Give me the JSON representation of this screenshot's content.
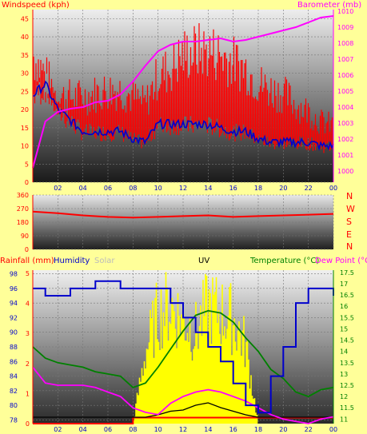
{
  "panel1": {
    "left_label": "Windspeed (kph)",
    "right_label": "Barometer (mb)",
    "center_label": "",
    "y_left_ticks": [
      "45",
      "40",
      "35",
      "30",
      "25",
      "20",
      "15",
      "10",
      "5",
      "0"
    ],
    "y_right_ticks": [
      "1010",
      "1009",
      "1008",
      "1007",
      "1006",
      "1005",
      "1004",
      "1003",
      "1002",
      "1001",
      "1000"
    ],
    "x_ticks": [
      "02",
      "04",
      "06",
      "08",
      "10",
      "12",
      "14",
      "16",
      "18",
      "20",
      "22",
      "00"
    ]
  },
  "panel2": {
    "y_ticks": [
      "360",
      "270",
      "180",
      "90",
      "0"
    ],
    "x_ticks": [
      "02",
      "04",
      "06",
      "08",
      "10",
      "12",
      "14",
      "16",
      "18",
      "20",
      "22",
      "00"
    ],
    "compass": [
      "N",
      "W",
      "S",
      "E",
      "N"
    ]
  },
  "panel3": {
    "labels": {
      "rainfall": "Rainfall (mm)",
      "humidity": "Humidity",
      "solar": "Solar",
      "uv": "UV",
      "temperature": "Temperature (°C)",
      "dewpoint": "Dew Point (°C)"
    },
    "y_rain_ticks": [
      "5",
      "4",
      "3",
      "2",
      "1",
      "0"
    ],
    "y_hum_ticks": [
      "98",
      "96",
      "94",
      "92",
      "90",
      "88",
      "86",
      "84",
      "82",
      "80",
      "78"
    ],
    "y_temp_ticks": [
      "17.5",
      "17",
      "16.5",
      "16",
      "15.5",
      "15",
      "14.5",
      "14",
      "13.5",
      "13",
      "12.5",
      "12",
      "11.5",
      "11"
    ],
    "x_ticks": [
      "02",
      "04",
      "06",
      "08",
      "10",
      "12",
      "14",
      "16",
      "18",
      "20",
      "22",
      "00"
    ]
  },
  "colors": {
    "background": "#ffff99",
    "wind": "#ff0000",
    "gust": "#ff0000",
    "avg_wind": "#0000cc",
    "barometer": "#ff00ff",
    "humidity": "#0000cc",
    "solar": "#ffff00",
    "temperature": "#008000",
    "dewpoint": "#ff00ff"
  },
  "chart_data": [
    {
      "type": "line",
      "x_hours": [
        0,
        1,
        2,
        3,
        4,
        5,
        6,
        7,
        8,
        9,
        10,
        11,
        12,
        13,
        14,
        15,
        16,
        17,
        18,
        19,
        20,
        21,
        22,
        23,
        24
      ],
      "series": [
        {
          "key": "gust",
          "values": [
            36,
            30,
            24,
            24,
            24,
            25,
            26,
            26,
            24,
            22,
            30,
            32,
            36,
            37,
            37,
            36,
            34,
            32,
            28,
            26,
            25,
            22,
            20,
            17,
            16
          ]
        },
        {
          "key": "avg",
          "values": [
            24,
            27,
            20,
            17,
            14,
            14,
            14,
            14,
            12,
            11,
            16,
            16,
            16,
            16,
            16,
            15,
            14,
            14,
            12,
            11,
            11,
            11,
            11,
            10,
            10
          ]
        },
        {
          "key": "barometer",
          "values": [
            1000.2,
            1003.1,
            1003.7,
            1003.9,
            1004.0,
            1004.3,
            1004.4,
            1004.8,
            1005.6,
            1006.6,
            1007.5,
            1007.9,
            1008.1,
            1008.1,
            1008.2,
            1008.3,
            1008.1,
            1008.2,
            1008.4,
            1008.6,
            1008.8,
            1009.0,
            1009.3,
            1009.6,
            1009.7
          ]
        }
      ]
    },
    {
      "type": "line",
      "x_hours": [
        0,
        2,
        4,
        6,
        8,
        10,
        12,
        14,
        16,
        18,
        20,
        22,
        24
      ],
      "series": [
        {
          "key": "direction",
          "values": [
            250,
            240,
            225,
            215,
            210,
            215,
            220,
            225,
            215,
            220,
            225,
            230,
            235
          ]
        }
      ]
    },
    {
      "type": "line",
      "x_hours": [
        0,
        1,
        2,
        3,
        4,
        5,
        6,
        7,
        8,
        9,
        10,
        11,
        12,
        13,
        14,
        15,
        16,
        17,
        18,
        19,
        20,
        21,
        22,
        23,
        24
      ],
      "series": [
        {
          "key": "humidity",
          "values": [
            96,
            95,
            95,
            96,
            96,
            97,
            97,
            96,
            96,
            96,
            96,
            94,
            92,
            90,
            88,
            86,
            83,
            80,
            79,
            84,
            88,
            94,
            96,
            96,
            95
          ]
        },
        {
          "key": "temperature",
          "values": [
            14.2,
            13.7,
            13.5,
            13.4,
            13.3,
            13.1,
            13.0,
            12.9,
            12.4,
            12.6,
            13.3,
            14.1,
            14.9,
            15.6,
            15.8,
            15.7,
            15.3,
            14.6,
            14.0,
            13.2,
            12.8,
            12.2,
            12.0,
            12.3,
            12.4
          ]
        },
        {
          "key": "dewpoint",
          "values": [
            13.3,
            12.6,
            12.5,
            12.5,
            12.5,
            12.4,
            12.2,
            12.0,
            11.5,
            11.3,
            11.2,
            11.7,
            12.0,
            12.2,
            12.3,
            12.2,
            12.0,
            11.8,
            11.5,
            11.2,
            11.0,
            10.9,
            10.8,
            11.0,
            11.1
          ]
        },
        {
          "key": "rainfall",
          "values": [
            0,
            0,
            0,
            0,
            0,
            0,
            0,
            0,
            0.2,
            0.2,
            0.2,
            0.2,
            0.2,
            0.2,
            0.2,
            0.2,
            0.2,
            0.2,
            0.2,
            0.2,
            0.2,
            0.2,
            0.2,
            0.2,
            0.2
          ]
        },
        {
          "key": "solar",
          "values": [
            0,
            0,
            0,
            0,
            0,
            0,
            0,
            0,
            0,
            55,
            85,
            90,
            80,
            70,
            90,
            85,
            80,
            60,
            0,
            0,
            0,
            0,
            0,
            0,
            0
          ]
        },
        {
          "key": "uv",
          "values": [
            0,
            0,
            0,
            0,
            0,
            0,
            0,
            0,
            0,
            0,
            0.2,
            0.5,
            0.6,
            1.0,
            1.2,
            0.8,
            0.5,
            0.2,
            0,
            0,
            0,
            0,
            0,
            0,
            0
          ]
        }
      ]
    }
  ]
}
